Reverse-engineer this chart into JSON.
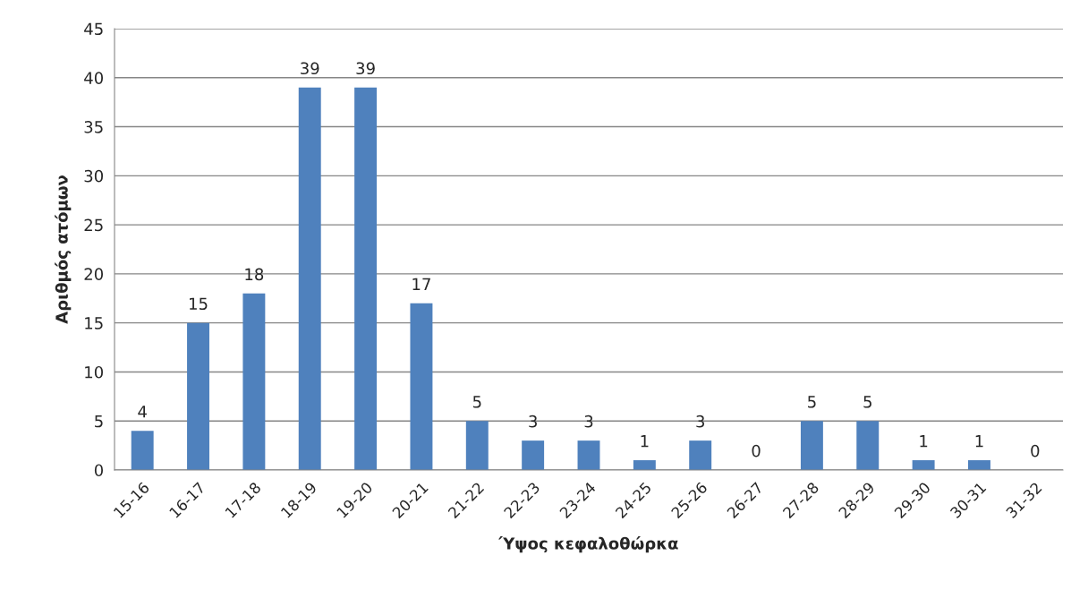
{
  "chart_data": {
    "type": "bar",
    "xlabel": "Ύψος κεφαλοθώρκα",
    "ylabel": "Αριθμός ατόμων",
    "categories": [
      "15-16",
      "16-17",
      "17-18",
      "18-19",
      "19-20",
      "20-21",
      "21-22",
      "22-23",
      "23-24",
      "24-25",
      "25-26",
      "26-27",
      "27-28",
      "28-29",
      "29-30",
      "30-31",
      "31-32"
    ],
    "values": [
      4,
      15,
      18,
      39,
      39,
      17,
      5,
      3,
      3,
      1,
      3,
      0,
      5,
      5,
      1,
      1,
      0
    ],
    "color": "#4f81bd",
    "data_labels": true,
    "grid": "y",
    "ylim": [
      0,
      45
    ],
    "yticks": [
      0,
      5,
      10,
      15,
      20,
      25,
      30,
      35,
      40,
      45
    ]
  }
}
